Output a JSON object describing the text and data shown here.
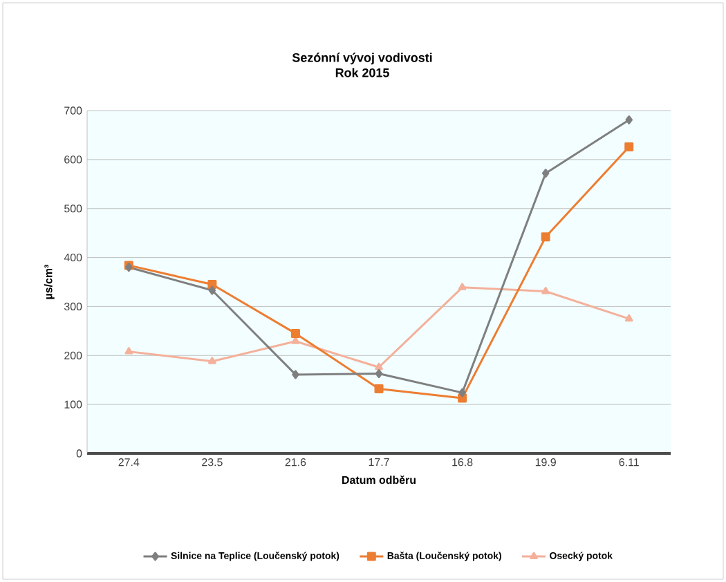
{
  "chart_data": {
    "type": "line",
    "title": "Sezónní vývoj vodivosti",
    "subtitle": "Rok 2015",
    "xlabel": "Datum odběru",
    "ylabel": "µs/cm³",
    "categories": [
      "27.4",
      "23.5",
      "21.6",
      "17.7",
      "16.8",
      "19.9",
      "6.11"
    ],
    "series": [
      {
        "name": "Silnice na Teplice (Loučenský potok)",
        "color": "#7f7f7f",
        "marker": "diamond",
        "values": [
          380,
          333,
          161,
          163,
          124,
          572,
          681
        ]
      },
      {
        "name": "Bašta (Loučenský potok)",
        "color": "#ed7d31",
        "marker": "square",
        "values": [
          384,
          345,
          245,
          132,
          113,
          442,
          626
        ]
      },
      {
        "name": "Osecký potok",
        "color": "#f4b09a",
        "marker": "triangle",
        "values": [
          208,
          188,
          229,
          176,
          339,
          331,
          275
        ]
      }
    ],
    "ylim": [
      0,
      700
    ],
    "yticks": [
      0,
      100,
      200,
      300,
      400,
      500,
      600,
      700
    ],
    "grid": "y",
    "legend": "bottom",
    "line_style": "solid"
  }
}
